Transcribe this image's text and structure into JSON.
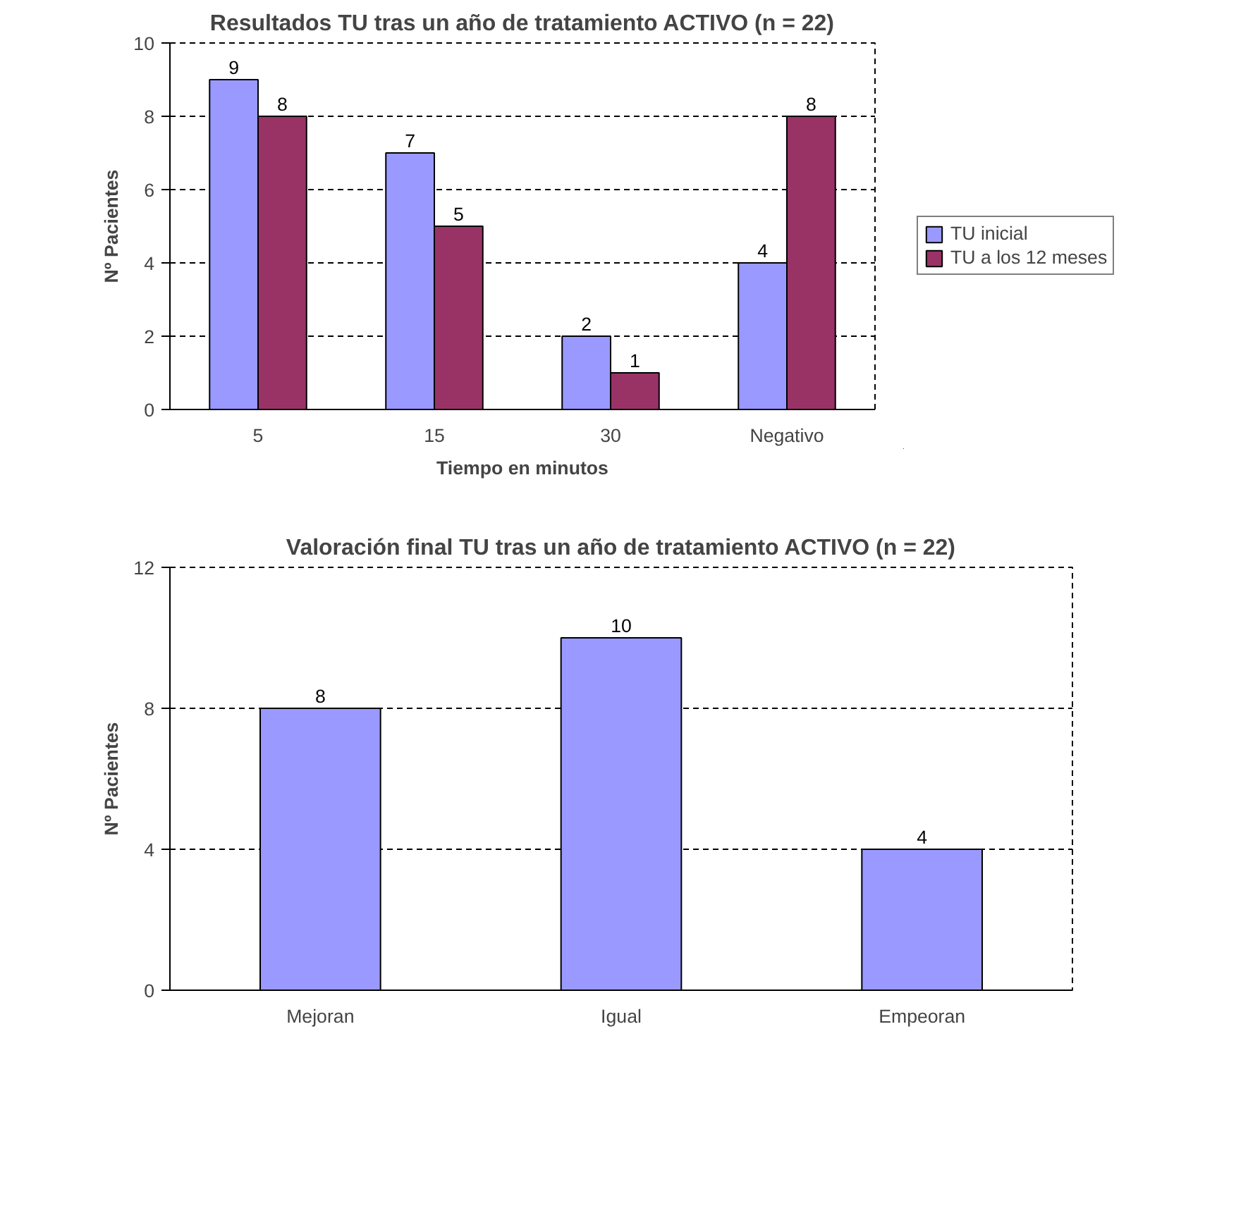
{
  "chart_data": [
    {
      "type": "bar",
      "title": "Resultados TU tras un año de tratamiento ACTIVO (n = 22)",
      "xlabel": "Tiempo en minutos",
      "ylabel": "Nº Pacientes",
      "categories": [
        "5",
        "15",
        "30",
        "Negativo"
      ],
      "series": [
        {
          "name": "TU inicial",
          "color": "#9999ff",
          "values": [
            9,
            7,
            2,
            4
          ]
        },
        {
          "name": "TU a los 12 meses",
          "color": "#993366",
          "values": [
            8,
            5,
            1,
            8
          ]
        }
      ],
      "ylim": [
        0,
        10
      ],
      "yticks": [
        0,
        2,
        4,
        6,
        8,
        10
      ],
      "grid": "y",
      "legend": "right",
      "data_labels": true
    },
    {
      "type": "bar",
      "title": "Valoración final TU tras un año de tratamiento ACTIVO (n = 22)",
      "ylabel": "Nº Pacientes",
      "categories": [
        "Mejoran",
        "Igual",
        "Empeoran"
      ],
      "series": [
        {
          "color": "#9999ff",
          "values": [
            8,
            10,
            4
          ]
        }
      ],
      "ylim": [
        0,
        12
      ],
      "yticks": [
        0,
        4,
        8,
        12
      ],
      "grid": "y",
      "legend": false,
      "data_labels": true
    }
  ]
}
